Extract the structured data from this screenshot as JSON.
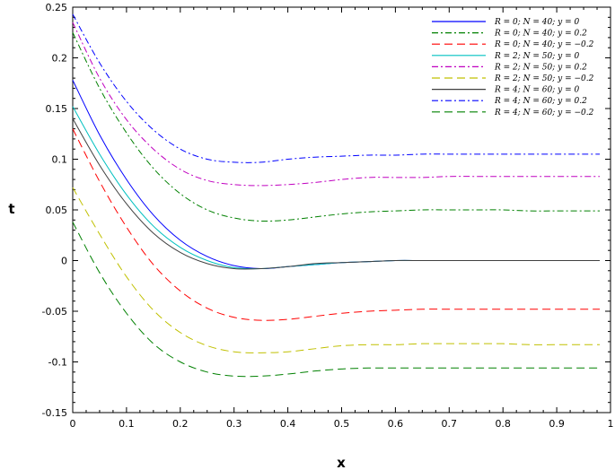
{
  "chart_data": {
    "type": "line",
    "title": "",
    "xlabel": "x",
    "ylabel": "t",
    "xlim": [
      0,
      1
    ],
    "ylim": [
      -0.15,
      0.25
    ],
    "xticks": [
      {
        "v": 0,
        "label": "0"
      },
      {
        "v": 0.1,
        "label": "0.1"
      },
      {
        "v": 0.2,
        "label": "0.2"
      },
      {
        "v": 0.3,
        "label": "0.3"
      },
      {
        "v": 0.4,
        "label": "0.4"
      },
      {
        "v": 0.5,
        "label": "0.5"
      },
      {
        "v": 0.6,
        "label": "0.6"
      },
      {
        "v": 0.7,
        "label": "0.7"
      },
      {
        "v": 0.8,
        "label": "0.8"
      },
      {
        "v": 0.9,
        "label": "0.9"
      },
      {
        "v": 1,
        "label": "1"
      }
    ],
    "yticks": [
      {
        "v": -0.15,
        "label": "-0.15"
      },
      {
        "v": -0.1,
        "label": "-0.1"
      },
      {
        "v": -0.05,
        "label": "-0.05"
      },
      {
        "v": 0,
        "label": "0"
      },
      {
        "v": 0.05,
        "label": "0.05"
      },
      {
        "v": 0.1,
        "label": "0.1"
      },
      {
        "v": 0.15,
        "label": "0.15"
      },
      {
        "v": 0.2,
        "label": "0.2"
      },
      {
        "v": 0.25,
        "label": "0.25"
      }
    ],
    "grid": false,
    "legend_position": "top-right",
    "x": [
      0,
      0.05,
      0.1,
      0.15,
      0.2,
      0.25,
      0.3,
      0.35,
      0.4,
      0.45,
      0.5,
      0.55,
      0.6,
      0.65,
      0.7,
      0.75,
      0.8,
      0.85,
      0.9,
      0.95,
      0.98
    ],
    "series": [
      {
        "name": "R = 0; N = 40; y = 0",
        "color": "#0000ff",
        "dash": "solid",
        "values": [
          0.178,
          0.124,
          0.08,
          0.045,
          0.02,
          0.004,
          -0.005,
          -0.008,
          -0.006,
          -0.004,
          -0.002,
          -0.001,
          0,
          0,
          0,
          0,
          0,
          0,
          0,
          0,
          0
        ]
      },
      {
        "name": "R = 0; N = 40; y = 0.2",
        "color": "#008000",
        "dash": "dashdot",
        "values": [
          0.225,
          0.17,
          0.126,
          0.091,
          0.066,
          0.05,
          0.042,
          0.039,
          0.04,
          0.043,
          0.046,
          0.048,
          0.049,
          0.05,
          0.05,
          0.05,
          0.05,
          0.049,
          0.049,
          0.049,
          0.049
        ]
      },
      {
        "name": "R = 0; N = 40; y = −0.2",
        "color": "#ff0000",
        "dash": "dashed",
        "values": [
          0.13,
          0.078,
          0.033,
          -0.004,
          -0.03,
          -0.047,
          -0.056,
          -0.059,
          -0.058,
          -0.055,
          -0.052,
          -0.05,
          -0.049,
          -0.048,
          -0.048,
          -0.048,
          -0.048,
          -0.048,
          -0.048,
          -0.048,
          -0.048
        ]
      },
      {
        "name": "R = 2; N = 50; y = 0",
        "color": "#00c0c0",
        "dash": "solid",
        "values": [
          0.152,
          0.105,
          0.065,
          0.034,
          0.013,
          0.0,
          -0.007,
          -0.008,
          -0.006,
          -0.004,
          -0.002,
          -0.001,
          0,
          0,
          0,
          0,
          0,
          0,
          0,
          0,
          0
        ]
      },
      {
        "name": "R = 2; N = 50; y = 0.2",
        "color": "#c000c0",
        "dash": "dashdot",
        "values": [
          0.235,
          0.18,
          0.139,
          0.11,
          0.09,
          0.079,
          0.075,
          0.074,
          0.075,
          0.077,
          0.08,
          0.082,
          0.082,
          0.082,
          0.083,
          0.083,
          0.083,
          0.083,
          0.083,
          0.083,
          0.083
        ]
      },
      {
        "name": "R = 2; N = 50; y = −0.2",
        "color": "#c0c000",
        "dash": "dashed",
        "values": [
          0.072,
          0.026,
          -0.016,
          -0.049,
          -0.071,
          -0.084,
          -0.09,
          -0.091,
          -0.09,
          -0.087,
          -0.084,
          -0.083,
          -0.083,
          -0.082,
          -0.082,
          -0.082,
          -0.082,
          -0.083,
          -0.083,
          -0.083,
          -0.083
        ]
      },
      {
        "name": "R = 4; N = 60; y = 0",
        "color": "#404040",
        "dash": "solid",
        "values": [
          0.14,
          0.094,
          0.056,
          0.027,
          0.008,
          -0.003,
          -0.008,
          -0.008,
          -0.006,
          -0.003,
          -0.002,
          -0.001,
          0,
          0,
          0,
          0,
          0,
          0,
          0,
          0,
          0
        ]
      },
      {
        "name": "R = 4; N = 60; y = 0.2",
        "color": "#0000ff",
        "dash": "dashdot",
        "values": [
          0.243,
          0.195,
          0.157,
          0.129,
          0.11,
          0.1,
          0.097,
          0.097,
          0.1,
          0.102,
          0.103,
          0.104,
          0.104,
          0.105,
          0.105,
          0.105,
          0.105,
          0.105,
          0.105,
          0.105,
          0.105
        ]
      },
      {
        "name": "R = 4; N = 60; y = −0.2",
        "color": "#008000",
        "dash": "dashed",
        "values": [
          0.038,
          -0.012,
          -0.052,
          -0.082,
          -0.1,
          -0.11,
          -0.114,
          -0.114,
          -0.112,
          -0.109,
          -0.107,
          -0.106,
          -0.106,
          -0.106,
          -0.106,
          -0.106,
          -0.106,
          -0.106,
          -0.106,
          -0.106,
          -0.106
        ]
      }
    ]
  }
}
